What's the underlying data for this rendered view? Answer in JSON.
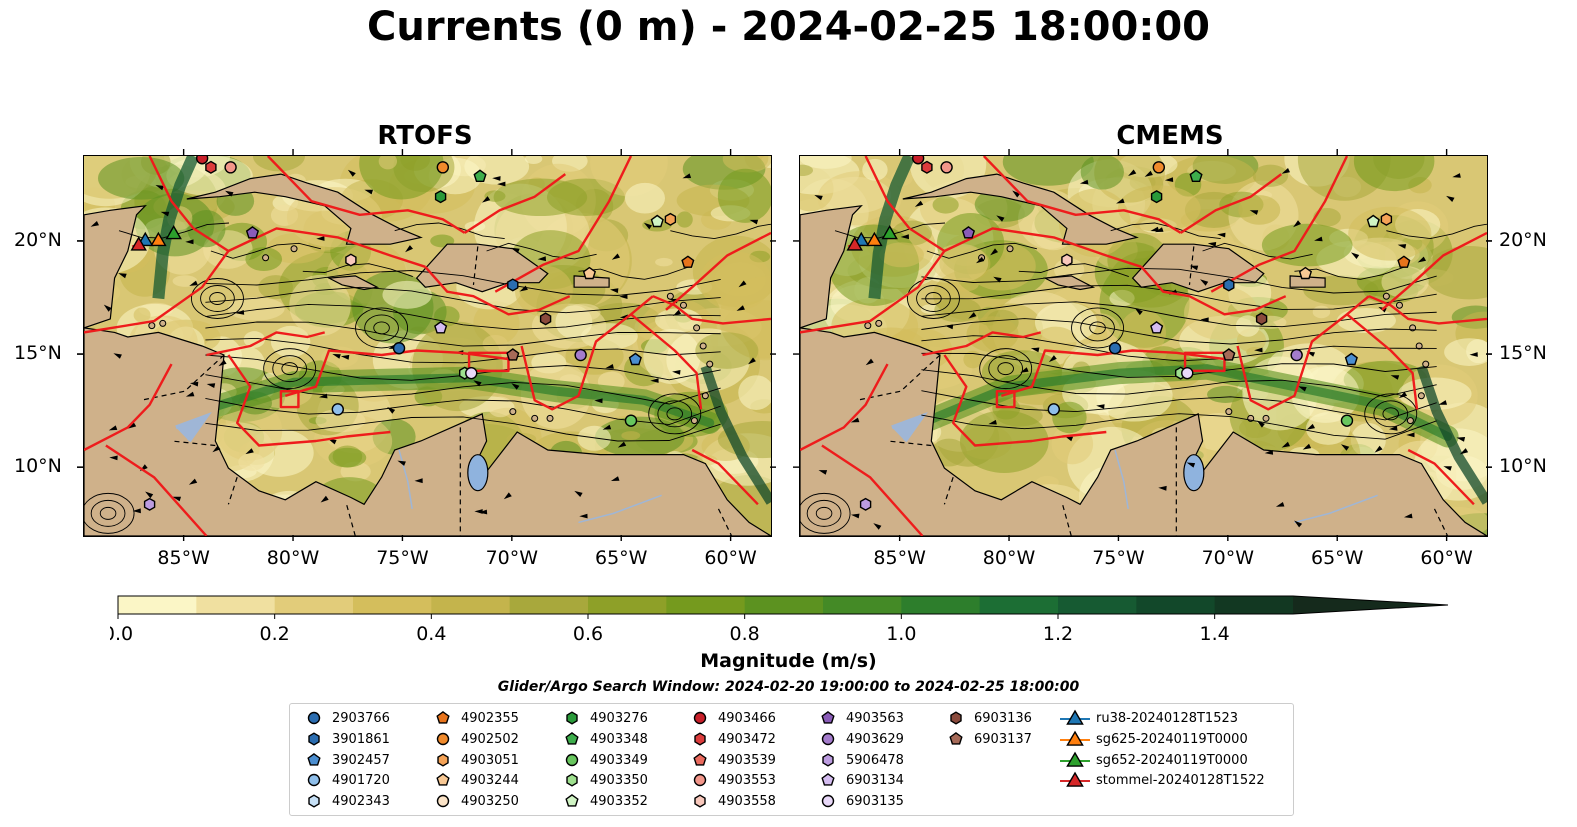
{
  "title": "Currents (0 m) - 2024-02-25 18:00:00",
  "panels": [
    {
      "title": "RTOFS"
    },
    {
      "title": "CMEMS"
    }
  ],
  "lon_ticks": [
    "85°W",
    "80°W",
    "75°W",
    "70°W",
    "65°W",
    "60°W"
  ],
  "lat_ticks": [
    "20°N",
    "15°N",
    "10°N"
  ],
  "colorbar": {
    "label": "Magnitude (m/s)",
    "min": 0.0,
    "max": 1.5,
    "extend": "max",
    "ticks": [
      "0.0",
      "0.2",
      "0.4",
      "0.6",
      "0.8",
      "1.0",
      "1.2",
      "1.4"
    ],
    "colors": [
      "#fbf6c6",
      "#f0e0a0",
      "#e2cc7a",
      "#d4be5c",
      "#c4b44c",
      "#a8a83c",
      "#8ea028",
      "#759a1e",
      "#5c9220",
      "#448a26",
      "#2d7e2c",
      "#1c6e34",
      "#165a32",
      "#12482a",
      "#123822",
      "#152a1c"
    ]
  },
  "search_window": "Glider/Argo Search Window: 2024-02-20 19:00:00 to 2024-02-25 18:00:00",
  "legend": [
    {
      "label": "2903766",
      "marker": "circle",
      "color": "#2b6db0"
    },
    {
      "label": "3901861",
      "marker": "hexagon",
      "color": "#2b6db0"
    },
    {
      "label": "3902457",
      "marker": "pentagon",
      "color": "#4b8ed0"
    },
    {
      "label": "4901720",
      "marker": "circle",
      "color": "#8fbfeb"
    },
    {
      "label": "4902343",
      "marker": "hexagon",
      "color": "#c6e0f6"
    },
    {
      "label": "4902355",
      "marker": "pentagon",
      "color": "#e8741c"
    },
    {
      "label": "4902502",
      "marker": "circle",
      "color": "#f08a2c"
    },
    {
      "label": "4903051",
      "marker": "hexagon",
      "color": "#f4a256"
    },
    {
      "label": "4903244",
      "marker": "pentagon",
      "color": "#f8c894"
    },
    {
      "label": "4903250",
      "marker": "circle",
      "color": "#fce4c8"
    },
    {
      "label": "4903276",
      "marker": "hexagon",
      "color": "#2a9a3a"
    },
    {
      "label": "4903348",
      "marker": "pentagon",
      "color": "#3eae4c"
    },
    {
      "label": "4903349",
      "marker": "circle",
      "color": "#68c65e"
    },
    {
      "label": "4903350",
      "marker": "hexagon",
      "color": "#9ee08e"
    },
    {
      "label": "4903352",
      "marker": "pentagon",
      "color": "#d0f4c4"
    },
    {
      "label": "4903466",
      "marker": "circle",
      "color": "#c8202a"
    },
    {
      "label": "4903472",
      "marker": "hexagon",
      "color": "#dc3c3c"
    },
    {
      "label": "4903539",
      "marker": "pentagon",
      "color": "#ea6a5e"
    },
    {
      "label": "4903553",
      "marker": "circle",
      "color": "#f2968a"
    },
    {
      "label": "4903558",
      "marker": "hexagon",
      "color": "#f8c8bc"
    },
    {
      "label": "4903563",
      "marker": "pentagon",
      "color": "#8a5cb8"
    },
    {
      "label": "4903629",
      "marker": "circle",
      "color": "#a47ccc"
    },
    {
      "label": "5906478",
      "marker": "hexagon",
      "color": "#bc9ce0"
    },
    {
      "label": "6903134",
      "marker": "pentagon",
      "color": "#d4bcf0"
    },
    {
      "label": "6903135",
      "marker": "circle",
      "color": "#e8d8f8"
    },
    {
      "label": "6903136",
      "marker": "hexagon",
      "color": "#8a4a3c"
    },
    {
      "label": "6903137",
      "marker": "pentagon",
      "color": "#a66a58"
    },
    {
      "label": "ru38-20240128T1523",
      "marker": "triangle-line",
      "color": "#1f77b4"
    },
    {
      "label": "sg625-20240119T0000",
      "marker": "triangle-line",
      "color": "#ff7f0e"
    },
    {
      "label": "sg652-20240119T0000",
      "marker": "triangle-line",
      "color": "#2ca02c"
    },
    {
      "label": "stommel-20240128T1522",
      "marker": "triangle-line",
      "color": "#d62728"
    }
  ],
  "floats_on_map": [
    {
      "id": "2903766",
      "lon": -75.2,
      "lat": 15.3
    },
    {
      "id": "3901861",
      "lon": -70.0,
      "lat": 18.1
    },
    {
      "id": "3902457",
      "lon": -64.4,
      "lat": 14.8
    },
    {
      "id": "4901720",
      "lon": -78.0,
      "lat": 12.6
    },
    {
      "id": "4902355",
      "lon": -62.0,
      "lat": 19.1
    },
    {
      "id": "4902502",
      "lon": -73.2,
      "lat": 23.3
    },
    {
      "id": "4903244",
      "lon": -66.5,
      "lat": 18.6
    },
    {
      "id": "4903276",
      "lon": -73.3,
      "lat": 22.0
    },
    {
      "id": "4903348",
      "lon": -71.5,
      "lat": 22.9
    },
    {
      "id": "4903349",
      "lon": -64.6,
      "lat": 12.1
    },
    {
      "id": "4903350",
      "lon": -72.2,
      "lat": 14.2
    },
    {
      "id": "4903352",
      "lon": -63.4,
      "lat": 20.9
    },
    {
      "id": "4903466",
      "lon": -84.2,
      "lat": 23.7
    },
    {
      "id": "4903472",
      "lon": -83.8,
      "lat": 23.3
    },
    {
      "id": "4903553",
      "lon": -82.9,
      "lat": 23.3
    },
    {
      "id": "4903558",
      "lon": -77.4,
      "lat": 19.2
    },
    {
      "id": "4903563",
      "lon": -81.9,
      "lat": 20.4
    },
    {
      "id": "4903629",
      "lon": -66.9,
      "lat": 15.0
    },
    {
      "id": "6903134",
      "lon": -73.3,
      "lat": 16.2
    },
    {
      "id": "6903135",
      "lon": -71.9,
      "lat": 14.2
    },
    {
      "id": "6903136",
      "lon": -68.5,
      "lat": 16.6
    },
    {
      "id": "6903137",
      "lon": -70.0,
      "lat": 15.0
    },
    {
      "id": "5906478",
      "lon": -86.6,
      "lat": 8.4
    },
    {
      "id": "4903051",
      "lon": -62.8,
      "lat": 21.0
    }
  ],
  "gliders_on_map": [
    {
      "id": "ru38-20240128T1523",
      "lon": -86.8,
      "lat": 20.1
    },
    {
      "id": "sg625-20240119T0000",
      "lon": -86.2,
      "lat": 20.1
    },
    {
      "id": "sg652-20240119T0000",
      "lon": -85.5,
      "lat": 20.4
    },
    {
      "id": "stommel-20240128T1522",
      "lon": -87.1,
      "lat": 19.9
    }
  ]
}
